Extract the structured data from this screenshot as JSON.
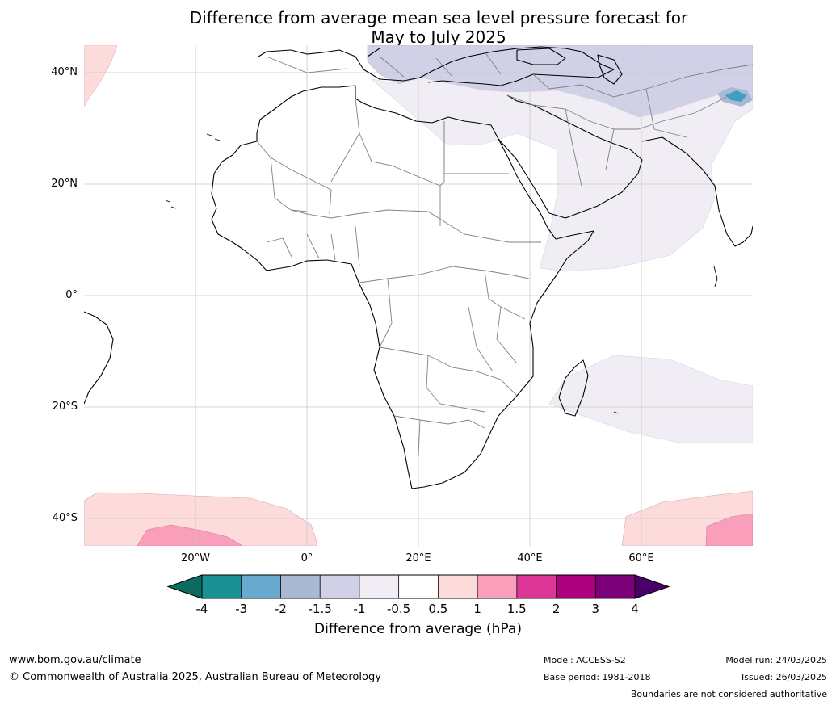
{
  "header": {
    "title_line1": "Difference from average mean sea level pressure forecast for",
    "title_line2": "May to July 2025"
  },
  "map": {
    "region": "Africa and surrounding oceans",
    "graticule": "on",
    "lat_labels": [
      "40°N",
      "20°N",
      "0°",
      "20°S",
      "40°S"
    ],
    "lon_labels": [
      "20°W",
      "0°",
      "20°E",
      "40°E",
      "60°E"
    ],
    "regions": [
      {
        "name": "mediterranean-middle-east-low",
        "range": "-1.5 to -1",
        "color": "#d0d1e6"
      },
      {
        "name": "arabia-indian-ocean-low",
        "range": "-1 to -0.5",
        "color": "#f1edf5"
      },
      {
        "name": "south-indian-ocean-low",
        "range": "-1 to -0.5",
        "color": "#f1edf5"
      },
      {
        "name": "southern-ocean-high",
        "range": "0.5 to 1",
        "color": "#fddbdb"
      },
      {
        "name": "southern-ocean-high-core",
        "range": "1 to 1.5",
        "color": "#f99fbb"
      },
      {
        "name": "tibet-low-core",
        "range": "-4 to -2",
        "color": "#3e9ec4"
      }
    ]
  },
  "colorbar": {
    "title": "Difference from average (hPa)",
    "ticks": [
      "-4",
      "-3",
      "-2",
      "-1.5",
      "-1",
      "-0.5",
      "0.5",
      "1",
      "1.5",
      "2",
      "3",
      "4"
    ],
    "colors": [
      "#1b9196",
      "#69aad1",
      "#a9b9d4",
      "#d0d1e6",
      "#f1edf5",
      "#ffffff",
      "#fddbdb",
      "#f99fbb",
      "#dc3797",
      "#ae017e",
      "#7a0177"
    ],
    "extend_low_color": "#0b6b5f",
    "extend_high_color": "#49006a"
  },
  "footer": {
    "website": "www.bom.gov.au/climate",
    "copyright": "© Commonwealth of Australia 2025, Australian Bureau of Meteorology",
    "model": "Model: ACCESS-S2",
    "base_period": "Base period: 1981-2018",
    "model_run": "Model run: 24/03/2025",
    "issued": "Issued: 26/03/2025",
    "disclaimer": "Boundaries are not considered authoritative"
  }
}
